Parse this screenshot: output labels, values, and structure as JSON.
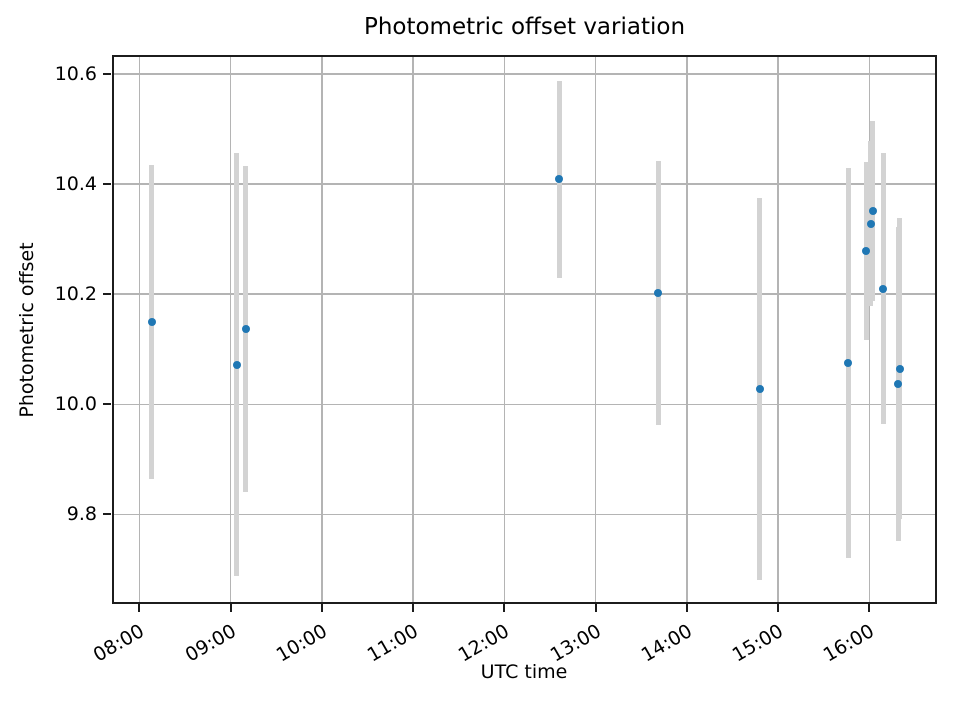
{
  "chart_data": {
    "type": "scatter",
    "title": "Photometric offset variation",
    "xlabel": "UTC time",
    "ylabel": "Photometric offset",
    "x_tick_labels": [
      "08:00",
      "09:00",
      "10:00",
      "11:00",
      "12:00",
      "13:00",
      "14:00",
      "15:00",
      "16:00"
    ],
    "x_tick_hours": [
      8,
      9,
      10,
      11,
      12,
      13,
      14,
      15,
      16
    ],
    "y_tick_labels": [
      "10.6",
      "10.4",
      "10.2",
      "10.0",
      "9.8"
    ],
    "y_tick_values": [
      10.6,
      10.4,
      10.2,
      10.0,
      9.8
    ],
    "xlim_hours": [
      7.7,
      16.74
    ],
    "ylim": [
      9.637,
      10.635
    ],
    "grid": true,
    "legend": false,
    "marker_color": "#1f77b4",
    "errorbar_color": "#d3d3d3",
    "grid_color": "#b4b4b4",
    "points": [
      {
        "time": "08:08",
        "value": 10.15,
        "err": 0.285
      },
      {
        "time": "09:04",
        "value": 10.072,
        "err": 0.385
      },
      {
        "time": "09:10",
        "value": 10.137,
        "err": 0.296
      },
      {
        "time": "12:36",
        "value": 10.409,
        "err": 0.179
      },
      {
        "time": "13:41",
        "value": 10.202,
        "err": 0.24
      },
      {
        "time": "14:48",
        "value": 10.028,
        "err": 0.347
      },
      {
        "time": "15:46",
        "value": 10.075,
        "err": 0.355
      },
      {
        "time": "15:58",
        "value": 10.278,
        "err": 0.162
      },
      {
        "time": "16:01",
        "value": 10.328,
        "err": 0.15
      },
      {
        "time": "16:02",
        "value": 10.351,
        "err": 0.164
      },
      {
        "time": "16:09",
        "value": 10.21,
        "err": 0.246
      },
      {
        "time": "16:19",
        "value": 10.037,
        "err": 0.286
      },
      {
        "time": "16:20",
        "value": 10.065,
        "err": 0.274
      }
    ]
  }
}
